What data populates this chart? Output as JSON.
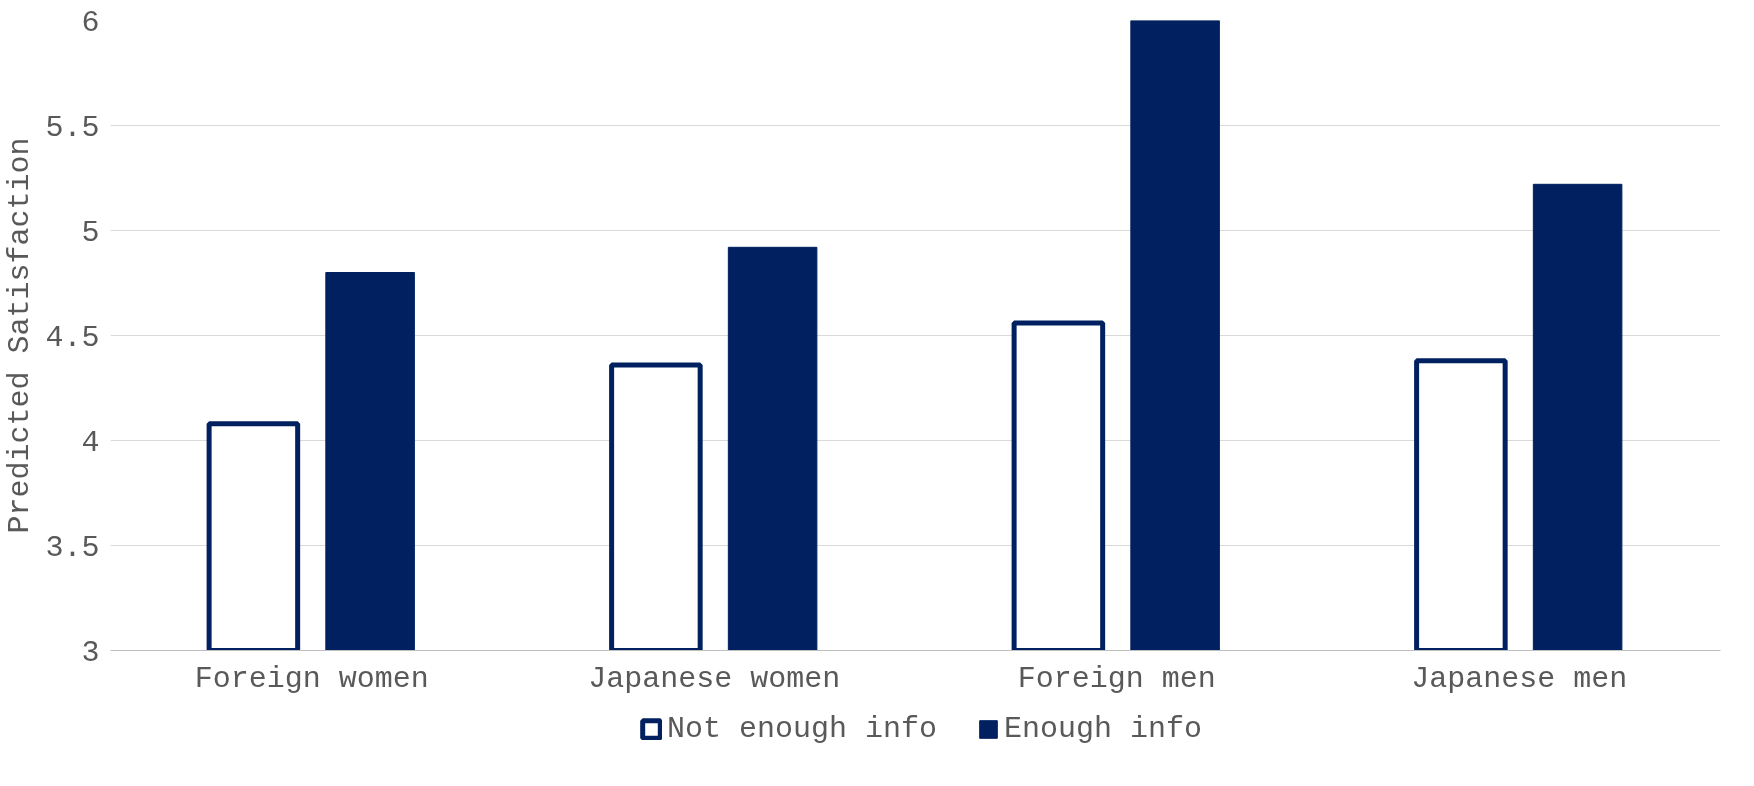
{
  "chart_data": {
    "type": "bar",
    "ylabel": "Predicted Satisfaction",
    "categories": [
      "Foreign women",
      "Japanese women",
      "Foreign men",
      "Japanese men"
    ],
    "series": [
      {
        "name": "Not enough info",
        "color": "#002060",
        "values": [
          4.08,
          4.36,
          4.56,
          4.38
        ]
      },
      {
        "name": "Enough info",
        "color": "#002060",
        "values": [
          4.8,
          4.92,
          6.0,
          5.22
        ]
      }
    ],
    "ylim": [
      3,
      6
    ],
    "yticks": [
      3,
      3.5,
      4,
      4.5,
      5,
      5.5,
      6
    ],
    "grid": "y",
    "legend": "bottom"
  }
}
